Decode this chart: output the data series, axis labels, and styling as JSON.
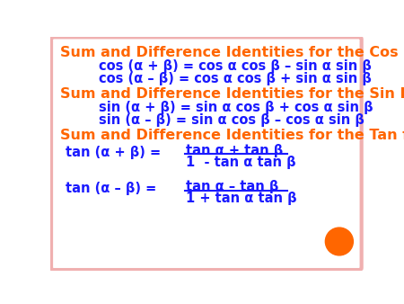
{
  "bg_color": "#ffffff",
  "border_color": "#f0b0b0",
  "orange_color": "#ff6600",
  "blue_color": "#1a1aff",
  "section1_title": "Sum and Difference Identities for the Cos Function",
  "section2_title": "Sum and Difference Identities for the Sin Function",
  "section3_title": "Sum and Difference Identities for the Tan function",
  "cos_eq1": "cos (α + β) = cos α cos β – sin α sin β",
  "cos_eq2": "cos (α – β) = cos α cos β + sin α sin β",
  "sin_eq1": "sin (α + β) = sin α cos β + cos α sin β",
  "sin_eq2": "sin (α – β) = sin α cos β – cos α sin β",
  "tan_lhs1": "tan (α + β) =",
  "tan_num1": "tan α + tan β",
  "tan_den1": "1  - tan α tan β",
  "tan_lhs2": "tan (α – β) =",
  "tan_num2": "tan α – tan β",
  "tan_den2": "1 + tan α tan β",
  "circle_color": "#ff6600",
  "title_fs": 11.5,
  "eq_fs": 10.5
}
